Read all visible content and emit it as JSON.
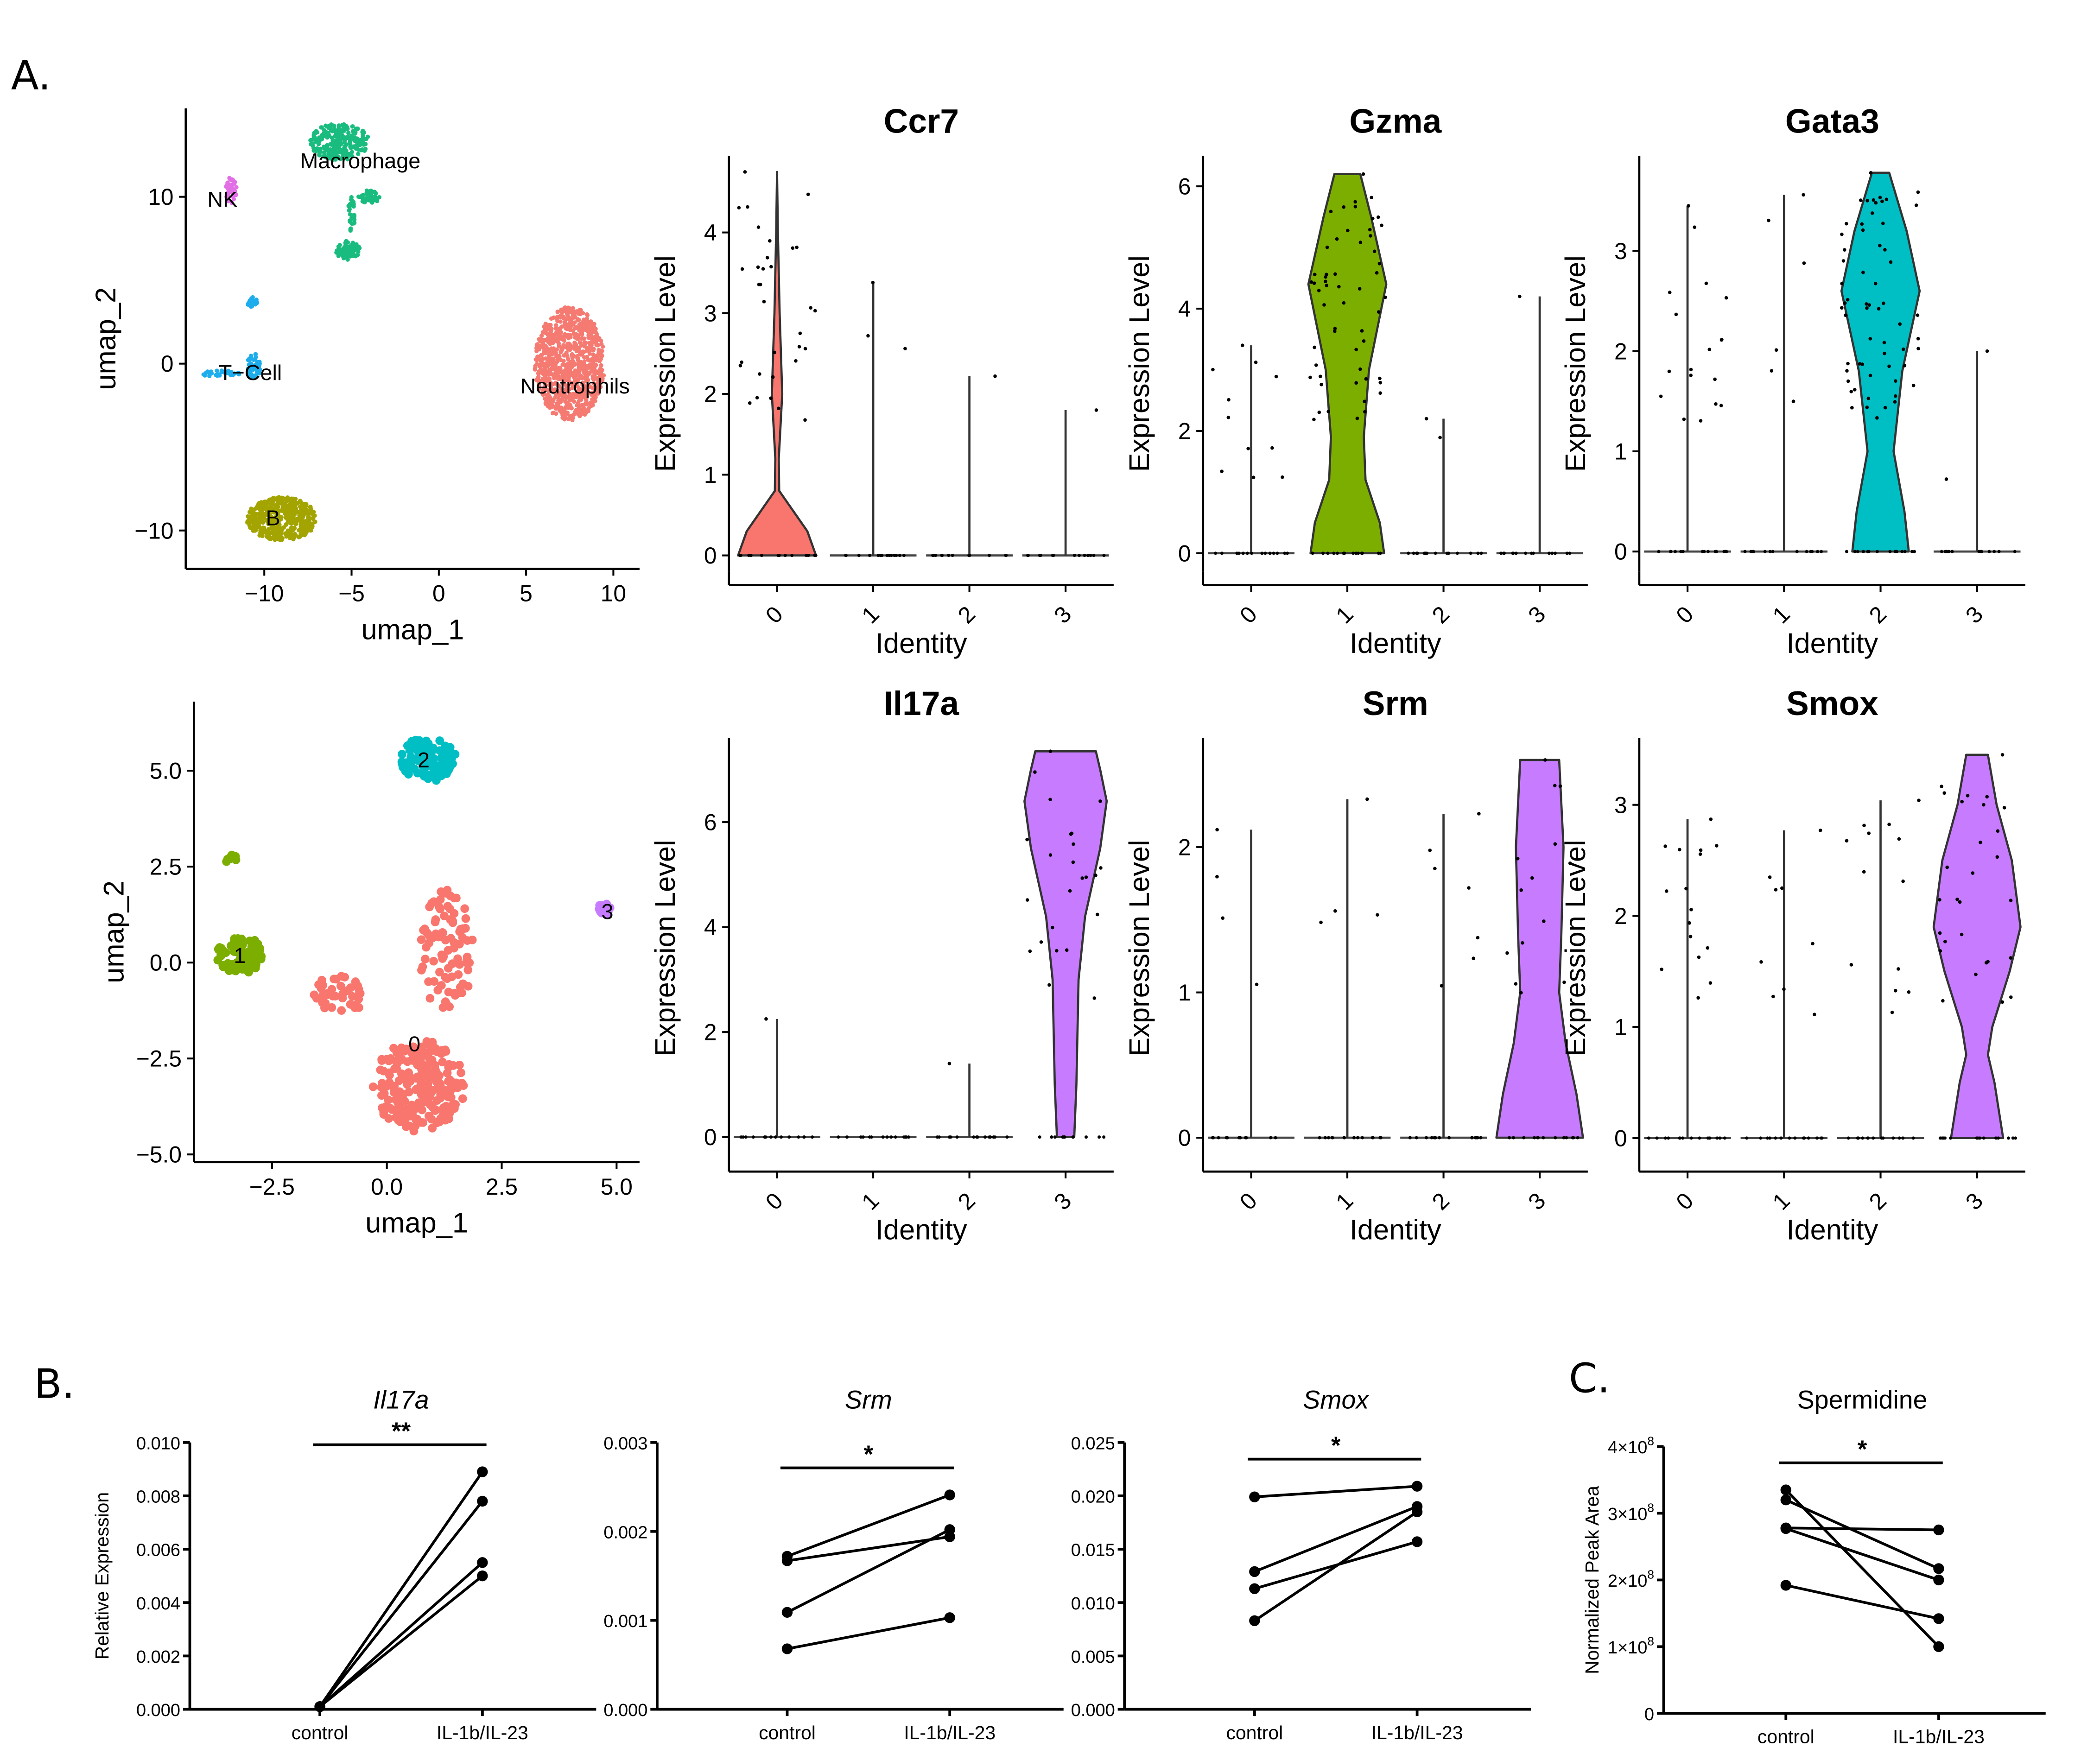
{
  "figure": {
    "panel_letters": [
      "A.",
      "B.",
      "C."
    ]
  },
  "chart_data": [
    {
      "id": "umap_all",
      "type": "scatter",
      "title": "",
      "xlabel": "umap_1",
      "ylabel": "umap_2",
      "xlim": [
        -14.5,
        11.5
      ],
      "ylim": [
        -12.3,
        15.3
      ],
      "xticks": [
        -10,
        -5,
        0,
        5,
        10
      ],
      "xtick_labels": [
        "−10",
        "−5",
        "0",
        "5",
        "10"
      ],
      "yticks": [
        -10,
        0,
        10
      ],
      "ytick_labels": [
        "−10",
        "0",
        "10"
      ],
      "clusters": [
        {
          "name": "Macrophage",
          "color": "#19BC7E",
          "label_at": [
            -4.5,
            12.2
          ],
          "blobs": [
            [
              -5.7,
              13.3,
              1.7,
              1.1,
              260
            ],
            [
              -4.0,
              10.0,
              0.6,
              0.4,
              40
            ],
            [
              -5.0,
              9.0,
              0.2,
              1.1,
              30
            ],
            [
              -5.2,
              6.8,
              0.7,
              0.6,
              70
            ]
          ]
        },
        {
          "name": "NK",
          "color": "#E26FE6",
          "label_at": [
            -12.4,
            9.9
          ],
          "blobs": [
            [
              -11.9,
              10.4,
              0.35,
              0.8,
              40
            ]
          ]
        },
        {
          "name": "T−Cell",
          "color": "#1DADED",
          "label_at": [
            -10.8,
            -0.5
          ],
          "blobs": [
            [
              -10.7,
              3.7,
              0.3,
              0.3,
              20
            ],
            [
              -10.6,
              -0.2,
              0.4,
              0.8,
              50
            ],
            [
              -12.5,
              -0.6,
              1.1,
              0.2,
              30
            ]
          ]
        },
        {
          "name": "Neutrophils",
          "color": "#F47A72",
          "label_at": [
            7.8,
            -1.3
          ],
          "blobs": [
            [
              7.5,
              0.0,
              2.0,
              3.4,
              900
            ]
          ]
        },
        {
          "name": "B",
          "color": "#A3A400",
          "label_at": [
            -9.5,
            -9.2
          ],
          "blobs": [
            [
              -9.0,
              -9.3,
              2.0,
              1.3,
              500
            ]
          ]
        }
      ]
    },
    {
      "id": "umap_tcells",
      "type": "scatter",
      "title": "",
      "xlabel": "umap_1",
      "ylabel": "umap_2",
      "xlim": [
        -4.2,
        5.5
      ],
      "ylim": [
        -5.2,
        6.8
      ],
      "xticks": [
        -2.5,
        0.0,
        2.5,
        5.0
      ],
      "xtick_labels": [
        "−2.5",
        "0.0",
        "2.5",
        "5.0"
      ],
      "yticks": [
        -5.0,
        -2.5,
        0.0,
        2.5,
        5.0
      ],
      "ytick_labels": [
        "−5.0",
        "−2.5",
        "0.0",
        "2.5",
        "5.0"
      ],
      "clusters": [
        {
          "name": "0",
          "color": "#F8766D",
          "label_at": [
            0.6,
            -2.1
          ],
          "blobs": [
            [
              0.7,
              -3.2,
              1.0,
              1.2,
              230
            ],
            [
              1.3,
              0.3,
              0.6,
              1.6,
              90
            ],
            [
              -1.0,
              -0.8,
              0.6,
              0.5,
              40
            ]
          ]
        },
        {
          "name": "1",
          "color": "#7CAE00",
          "label_at": [
            -3.2,
            0.2
          ],
          "blobs": [
            [
              -3.2,
              0.2,
              0.5,
              0.5,
              90
            ],
            [
              -3.4,
              2.7,
              0.12,
              0.15,
              8
            ]
          ]
        },
        {
          "name": "2",
          "color": "#00BFC4",
          "label_at": [
            0.8,
            5.3
          ],
          "blobs": [
            [
              0.9,
              5.3,
              0.6,
              0.6,
              90
            ]
          ]
        },
        {
          "name": "3",
          "color": "#C77CFF",
          "label_at": [
            4.8,
            1.35
          ],
          "blobs": [
            [
              4.75,
              1.4,
              0.15,
              0.15,
              25
            ]
          ]
        }
      ]
    },
    {
      "id": "violin_ccr7",
      "type": "violin",
      "title": "Ccr7",
      "xlabel": "Identity",
      "ylabel": "Expression Level",
      "categories": [
        "0",
        "1",
        "2",
        "3"
      ],
      "ylim": [
        -0.2,
        4.95
      ],
      "yticks": [
        0,
        1,
        2,
        3,
        4
      ],
      "highlight": 0,
      "color": "#F8766D",
      "max_values": [
        4.75,
        3.38,
        2.22,
        1.8
      ],
      "violin_profile": [
        [
          0,
          0.9
        ],
        [
          0.3,
          0.7
        ],
        [
          0.8,
          0.05
        ],
        [
          1.2,
          0.04
        ],
        [
          2.0,
          0.12
        ],
        [
          3.0,
          0.06
        ],
        [
          4.0,
          0.02
        ],
        [
          4.75,
          0.0
        ]
      ],
      "points_above_zero": [
        32,
        3,
        1,
        1
      ]
    },
    {
      "id": "violin_gzma",
      "type": "violin",
      "title": "Gzma",
      "xlabel": "Identity",
      "ylabel": "Expression Level",
      "categories": [
        "0",
        "1",
        "2",
        "3"
      ],
      "ylim": [
        -0.3,
        6.5
      ],
      "yticks": [
        0,
        2,
        4,
        6
      ],
      "highlight": 1,
      "color": "#7CAE00",
      "max_values": [
        3.4,
        6.2,
        2.2,
        4.2
      ],
      "violin_profile": [
        [
          0,
          0.85
        ],
        [
          0.5,
          0.75
        ],
        [
          1.2,
          0.42
        ],
        [
          1.9,
          0.38
        ],
        [
          3.0,
          0.5
        ],
        [
          4.4,
          0.9
        ],
        [
          5.5,
          0.55
        ],
        [
          6.2,
          0.3
        ]
      ],
      "points_above_zero": [
        11,
        55,
        2,
        1
      ]
    },
    {
      "id": "violin_gata3",
      "type": "violin",
      "title": "Gata3",
      "xlabel": "Identity",
      "ylabel": "Expression Level",
      "categories": [
        "0",
        "1",
        "2",
        "3"
      ],
      "ylim": [
        -0.2,
        3.95
      ],
      "yticks": [
        0,
        1,
        2,
        3
      ],
      "highlight": 2,
      "color": "#00BFC4",
      "max_values": [
        3.45,
        3.56,
        3.78,
        2.0
      ],
      "violin_profile": [
        [
          0,
          0.65
        ],
        [
          0.4,
          0.55
        ],
        [
          1.0,
          0.3
        ],
        [
          1.8,
          0.5
        ],
        [
          2.6,
          0.9
        ],
        [
          3.2,
          0.6
        ],
        [
          3.78,
          0.2
        ]
      ],
      "points_above_zero": [
        18,
        6,
        60,
        2
      ]
    },
    {
      "id": "violin_il17a",
      "type": "violin",
      "title": "Il17a",
      "xlabel": "Identity",
      "ylabel": "Expression Level",
      "categories": [
        "0",
        "1",
        "2",
        "3"
      ],
      "ylim": [
        -0.4,
        7.6
      ],
      "yticks": [
        0,
        2,
        4,
        6
      ],
      "highlight": 3,
      "color": "#C77CFF",
      "max_values": [
        2.25,
        0,
        1.4,
        7.35
      ],
      "violin_profile": [
        [
          0,
          0.2
        ],
        [
          1.0,
          0.25
        ],
        [
          3.0,
          0.3
        ],
        [
          4.2,
          0.45
        ],
        [
          5.5,
          0.8
        ],
        [
          6.4,
          0.95
        ],
        [
          7.0,
          0.8
        ],
        [
          7.35,
          0.7
        ]
      ],
      "points_above_zero": [
        1,
        0,
        1,
        24
      ]
    },
    {
      "id": "violin_srm",
      "type": "violin",
      "title": "Srm",
      "xlabel": "Identity",
      "ylabel": "Expression Level",
      "categories": [
        "0",
        "1",
        "2",
        "3"
      ],
      "ylim": [
        -0.14,
        2.75
      ],
      "yticks": [
        0,
        1,
        2
      ],
      "highlight": 3,
      "color": "#C77CFF",
      "max_values": [
        2.12,
        2.33,
        2.23,
        2.6
      ],
      "violin_profile": [
        [
          0,
          1.0
        ],
        [
          0.3,
          0.85
        ],
        [
          0.65,
          0.6
        ],
        [
          1.0,
          0.45
        ],
        [
          1.4,
          0.5
        ],
        [
          2.0,
          0.55
        ],
        [
          2.6,
          0.45
        ]
      ],
      "points_above_zero": [
        4,
        4,
        7,
        14
      ]
    },
    {
      "id": "violin_smox",
      "type": "violin",
      "title": "Smox",
      "xlabel": "Identity",
      "ylabel": "Expression Level",
      "categories": [
        "0",
        "1",
        "2",
        "3"
      ],
      "ylim": [
        -0.18,
        3.6
      ],
      "yticks": [
        0,
        1,
        2,
        3
      ],
      "highlight": 3,
      "color": "#C77CFF",
      "max_values": [
        2.87,
        2.77,
        3.04,
        3.45
      ],
      "violin_profile": [
        [
          0,
          0.6
        ],
        [
          0.5,
          0.4
        ],
        [
          0.75,
          0.25
        ],
        [
          1.0,
          0.35
        ],
        [
          1.5,
          0.75
        ],
        [
          1.9,
          1.0
        ],
        [
          2.5,
          0.8
        ],
        [
          3.0,
          0.45
        ],
        [
          3.45,
          0.25
        ]
      ],
      "points_above_zero": [
        16,
        9,
        13,
        28
      ]
    },
    {
      "id": "paired_il17a",
      "type": "line",
      "title": "Il17a",
      "title_italic": true,
      "xlabel": "",
      "ylabel": "Relative Expression",
      "categories": [
        "control",
        "IL-1b/IL-23"
      ],
      "ylim": [
        0,
        0.01
      ],
      "yticks": [
        0.0,
        0.002,
        0.004,
        0.006,
        0.008,
        0.01
      ],
      "ytick_labels": [
        "0.000",
        "0.002",
        "0.004",
        "0.006",
        "0.008",
        "0.010"
      ],
      "significance": "**",
      "series": [
        {
          "name": "pair 1",
          "values": [
            0.0001,
            0.0089
          ]
        },
        {
          "name": "pair 2",
          "values": [
            0.0001,
            0.0078
          ]
        },
        {
          "name": "pair 3",
          "values": [
            0.0001,
            0.0055
          ]
        },
        {
          "name": "pair 4",
          "values": [
            0.0001,
            0.005
          ]
        }
      ]
    },
    {
      "id": "paired_srm",
      "type": "line",
      "title": "Srm",
      "title_italic": true,
      "xlabel": "",
      "ylabel": "",
      "categories": [
        "control",
        "IL-1b/IL-23"
      ],
      "ylim": [
        0,
        0.003
      ],
      "yticks": [
        0.0,
        0.001,
        0.002,
        0.003
      ],
      "ytick_labels": [
        "0.000",
        "0.001",
        "0.002",
        "0.003"
      ],
      "significance": "*",
      "series": [
        {
          "name": "pair 1",
          "values": [
            0.00172,
            0.00241
          ]
        },
        {
          "name": "pair 2",
          "values": [
            0.00167,
            0.00194
          ]
        },
        {
          "name": "pair 3",
          "values": [
            0.00109,
            0.00202
          ]
        },
        {
          "name": "pair 4",
          "values": [
            0.00068,
            0.00103
          ]
        }
      ]
    },
    {
      "id": "paired_smox",
      "type": "line",
      "title": "Smox",
      "title_italic": true,
      "xlabel": "",
      "ylabel": "",
      "categories": [
        "control",
        "IL-1b/IL-23"
      ],
      "ylim": [
        0,
        0.025
      ],
      "yticks": [
        0.0,
        0.005,
        0.01,
        0.015,
        0.02,
        0.025
      ],
      "ytick_labels": [
        "0.000",
        "0.005",
        "0.010",
        "0.015",
        "0.020",
        "0.025"
      ],
      "significance": "*",
      "series": [
        {
          "name": "pair 1",
          "values": [
            0.0199,
            0.0209
          ]
        },
        {
          "name": "pair 2",
          "values": [
            0.0129,
            0.019
          ]
        },
        {
          "name": "pair 3",
          "values": [
            0.0113,
            0.0157
          ]
        },
        {
          "name": "pair 4",
          "values": [
            0.0083,
            0.0185
          ]
        }
      ]
    },
    {
      "id": "paired_spermidine",
      "type": "line",
      "title": "Spermidine",
      "title_italic": false,
      "xlabel": "",
      "ylabel": "Normalized Peak Area",
      "categories": [
        "control",
        "IL-1b/IL-23"
      ],
      "ylim": [
        0,
        400000000
      ],
      "yticks": [
        0,
        100000000,
        200000000,
        300000000,
        400000000
      ],
      "ytick_labels": [
        "0",
        "1×10",
        "2×10",
        "3×10",
        "4×10"
      ],
      "ytick_exponent": "8",
      "significance": "*",
      "series": [
        {
          "name": "pair 1",
          "values": [
            335000000,
            100000000
          ]
        },
        {
          "name": "pair 2",
          "values": [
            320000000,
            217000000
          ]
        },
        {
          "name": "pair 3",
          "values": [
            278000000,
            275000000
          ]
        },
        {
          "name": "pair 4",
          "values": [
            277000000,
            200000000
          ]
        },
        {
          "name": "pair 5",
          "values": [
            192000000,
            142000000
          ]
        }
      ]
    }
  ]
}
